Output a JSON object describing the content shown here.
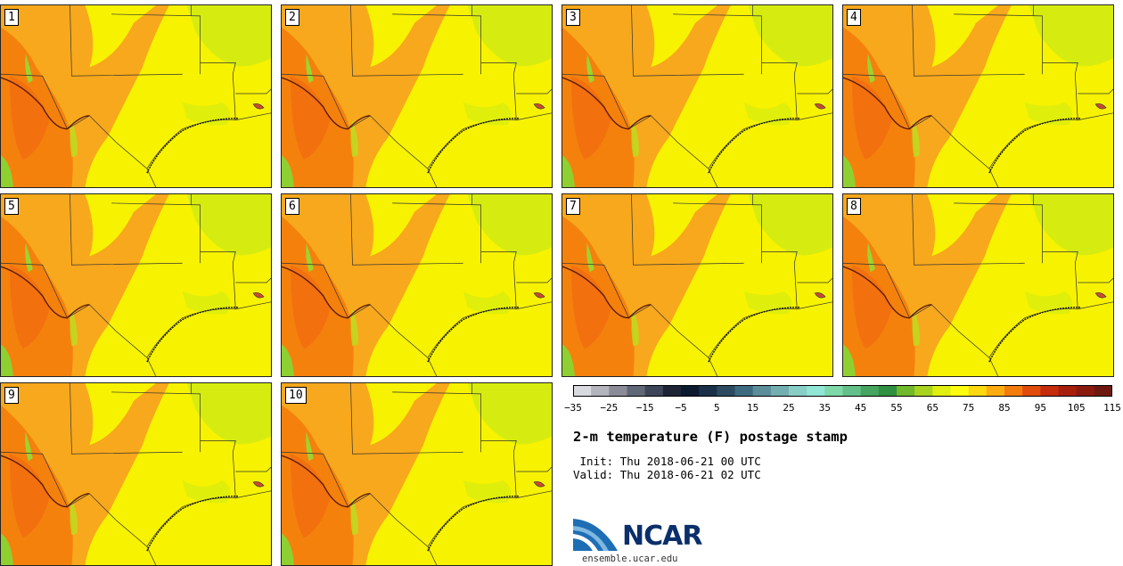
{
  "title": "2-m temperature (F) postage stamp",
  "init_line": " Init: Thu 2018-06-21 00 UTC",
  "valid_line": "Valid: Thu 2018-06-21 02 UTC",
  "website": "ensemble.ucar.edu",
  "logo_text": "NCAR",
  "members": [
    "1",
    "2",
    "3",
    "4",
    "5",
    "6",
    "7",
    "8",
    "9",
    "10"
  ],
  "colorbar": {
    "ticks": [
      "−35",
      "−25",
      "−15",
      "−5",
      "5",
      "15",
      "25",
      "35",
      "45",
      "55",
      "65",
      "75",
      "85",
      "95",
      "105",
      "115"
    ],
    "colors": [
      "#d9d9e0",
      "#b4b4bc",
      "#8c8c98",
      "#606878",
      "#3c4658",
      "#1c2436",
      "#0c1a30",
      "#1a3048",
      "#2c4a60",
      "#3e6a80",
      "#5c8e9a",
      "#74aeb0",
      "#88cec6",
      "#92e6d6",
      "#7ed8a8",
      "#62c088",
      "#44a460",
      "#2e9040",
      "#70b82c",
      "#a8d420",
      "#e0ee10",
      "#fcfc10",
      "#fcd810",
      "#fcac10",
      "#f47c0c",
      "#e04c0c",
      "#c42c0c",
      "#a81e0c",
      "#8a1a10",
      "#6c1810"
    ]
  },
  "map": {
    "base_color": "#f7f200",
    "hot_color": "#f8a81c",
    "hotter_color": "#f47c0c",
    "cool_color": "#d6ec10",
    "green_color": "#8ed030",
    "border_color": "#333333"
  }
}
